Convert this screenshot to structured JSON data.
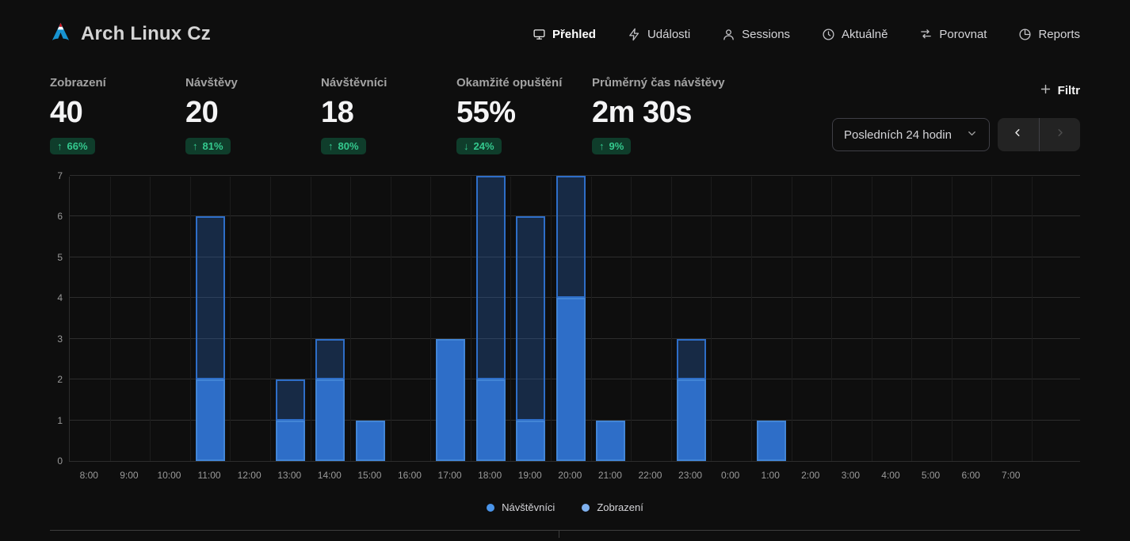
{
  "site": {
    "title": "Arch Linux Cz",
    "logo": "arch-linux-czech-logo"
  },
  "nav": {
    "items": [
      {
        "id": "prehled",
        "label": "Přehled",
        "icon": "monitor-icon",
        "active": true
      },
      {
        "id": "udalosti",
        "label": "Události",
        "icon": "lightning-icon",
        "active": false
      },
      {
        "id": "sessions",
        "label": "Sessions",
        "icon": "user-icon",
        "active": false
      },
      {
        "id": "aktualne",
        "label": "Aktuálně",
        "icon": "clock-icon",
        "active": false
      },
      {
        "id": "porovnat",
        "label": "Porovnat",
        "icon": "compare-arrows-icon",
        "active": false
      },
      {
        "id": "reports",
        "label": "Reports",
        "icon": "pie-chart-icon",
        "active": false
      }
    ]
  },
  "stats": [
    {
      "id": "zobrazeni",
      "label": "Zobrazení",
      "value": "40",
      "change": "66%",
      "direction": "up"
    },
    {
      "id": "navstevy",
      "label": "Návštěvy",
      "value": "20",
      "change": "81%",
      "direction": "up"
    },
    {
      "id": "navstevnici",
      "label": "Návštěvníci",
      "value": "18",
      "change": "80%",
      "direction": "up"
    },
    {
      "id": "opusteni",
      "label": "Okamžité opuštění",
      "value": "55%",
      "change": "24%",
      "direction": "down"
    },
    {
      "id": "cas",
      "label": "Průměrný čas návštěvy",
      "value": "2m 30s",
      "change": "9%",
      "direction": "up"
    }
  ],
  "controls": {
    "filter_label": "Filtr",
    "date_range_value": "Posledních 24 hodin",
    "prev_enabled": true,
    "next_enabled": false
  },
  "chart_data": {
    "type": "bar",
    "stacked": true,
    "title": "",
    "x": [
      "8:00",
      "9:00",
      "10:00",
      "11:00",
      "12:00",
      "13:00",
      "14:00",
      "15:00",
      "16:00",
      "17:00",
      "18:00",
      "19:00",
      "20:00",
      "21:00",
      "22:00",
      "23:00",
      "0:00",
      "1:00",
      "2:00",
      "3:00",
      "4:00",
      "5:00",
      "6:00",
      "7:00"
    ],
    "series": [
      {
        "name": "Návštěvníci",
        "color": "#2e6ec8",
        "values": [
          0,
          0,
          0,
          2,
          0,
          1,
          2,
          1,
          0,
          3,
          2,
          1,
          4,
          1,
          0,
          2,
          0,
          1,
          0,
          0,
          0,
          0,
          0,
          0
        ]
      },
      {
        "name": "Zobrazení",
        "color": "rgba(46,110,200,0.30)",
        "border_color": "#2e6ec8",
        "values": [
          0,
          0,
          0,
          6,
          0,
          2,
          3,
          1,
          0,
          3,
          7,
          6,
          7,
          1,
          0,
          3,
          0,
          1,
          0,
          0,
          0,
          0,
          0,
          0
        ],
        "note": "values are total stacked bar heights (views); lower segment is the visitors series"
      }
    ],
    "ylim": [
      0,
      7
    ],
    "yticks": [
      0,
      1,
      2,
      3,
      4,
      5,
      6,
      7
    ],
    "grid": "horizontal",
    "legend_position": "bottom"
  },
  "legend": [
    {
      "label": "Návštěvníci",
      "color": "#4a94e9"
    },
    {
      "label": "Zobrazení",
      "color": "#7fb1ef"
    }
  ],
  "colors": {
    "background": "#0e0e0e",
    "bar_solid": "#2e6ec8",
    "bar_translucent": "rgba(46,110,200,0.30)",
    "badge_bg": "#0f3d2b",
    "badge_text": "#34c98e",
    "grid": "#2d2d2d",
    "accent_logo": "#1793d1"
  }
}
